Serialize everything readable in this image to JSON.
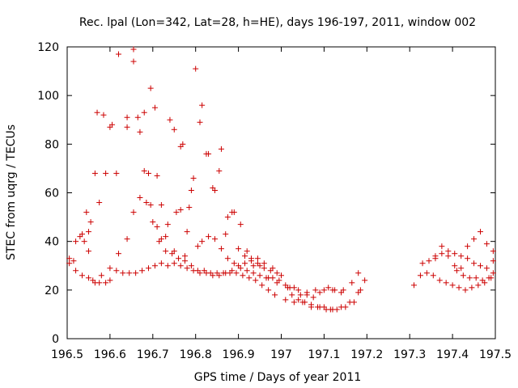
{
  "chart_data": {
    "type": "scatter",
    "title": "Rec. lpal (Lon=342, Lat=28, h=HE), days 196-197, 2011, window 002",
    "xlabel": "GPS time / Days of year 2011",
    "ylabel": "STEC from uqrg / TECUs",
    "xlim": [
      196.5,
      197.5
    ],
    "ylim": [
      0,
      120
    ],
    "xticks": [
      196.5,
      196.6,
      196.7,
      196.8,
      196.9,
      197,
      197.1,
      197.2,
      197.3,
      197.4,
      197.5
    ],
    "xtick_labels": [
      "196.5",
      "196.6",
      "196.7",
      "196.8",
      "196.9",
      "197",
      "197.1",
      "197.2",
      "197.3",
      "197.4",
      "197.5"
    ],
    "yticks": [
      0,
      20,
      40,
      60,
      80,
      100,
      120
    ],
    "ytick_labels": [
      "0",
      "20",
      "40",
      "60",
      "80",
      "100",
      "120"
    ],
    "grid": false,
    "marker": "+",
    "color": "#cc0000",
    "series": [
      {
        "x": [
          196.505,
          196.515,
          196.53,
          196.54,
          196.55,
          196.56,
          196.575,
          196.59,
          196.6,
          196.615,
          196.63,
          196.645,
          196.66,
          196.675,
          196.69,
          196.705,
          196.72,
          196.735,
          196.75,
          196.765,
          196.78,
          196.795,
          196.81,
          196.825,
          196.84,
          196.855,
          196.87,
          196.885,
          196.9,
          196.915,
          196.93,
          196.945,
          196.96,
          196.975,
          196.99,
          197.01,
          197.025,
          197.04,
          197.055,
          197.07,
          197.085,
          197.1,
          197.115,
          197.13,
          197.15,
          197.17,
          197.185,
          197.195
        ],
        "y": [
          33,
          32,
          42,
          40,
          36,
          24,
          23,
          23,
          24,
          28,
          27,
          27,
          27,
          28,
          29,
          30,
          31,
          30,
          31,
          30,
          29,
          28,
          27,
          27,
          26,
          26,
          27,
          28,
          30,
          31,
          32,
          31,
          29,
          28,
          27,
          22,
          18,
          16,
          15,
          14,
          13,
          13,
          12,
          12,
          13,
          15,
          20,
          24
        ]
      },
      {
        "x": [
          196.505,
          196.52,
          196.535,
          196.55,
          196.565,
          196.58,
          196.6,
          196.62,
          196.64,
          196.655,
          196.67,
          196.685,
          196.7,
          196.715,
          196.73,
          196.745,
          196.76,
          196.775,
          196.79,
          196.805,
          196.82,
          196.835,
          196.85,
          196.865,
          196.88,
          196.895,
          196.91,
          196.925,
          196.94,
          196.955,
          196.97,
          196.985,
          197.01,
          197.03,
          197.05,
          197.07,
          197.09,
          197.105,
          197.12,
          197.14,
          197.16,
          197.18
        ],
        "y": [
          31,
          28,
          26,
          25,
          23,
          26,
          29,
          35,
          41,
          52,
          58,
          56,
          48,
          40,
          36,
          35,
          33,
          32,
          30,
          28,
          28,
          27,
          27,
          27,
          27,
          27,
          26,
          25,
          24,
          22,
          20,
          18,
          16,
          15,
          15,
          13,
          13,
          12,
          12,
          13,
          15,
          19
        ]
      },
      {
        "x": [
          196.52,
          196.535,
          196.545,
          196.555,
          196.565,
          196.575,
          196.59,
          196.605,
          196.62,
          196.64,
          196.655,
          196.67,
          196.69,
          196.705,
          196.72,
          196.74,
          196.755,
          196.77,
          196.785,
          196.8,
          196.815,
          196.83,
          196.845,
          196.86,
          196.875,
          196.89,
          196.905,
          196.92,
          196.935,
          196.95,
          196.965,
          196.98,
          196.995,
          197.015,
          197.03,
          197.045,
          197.06,
          197.075,
          197.09,
          197.11,
          197.125,
          197.145,
          197.165,
          197.18
        ],
        "y": [
          40,
          43,
          52,
          48,
          68,
          56,
          68,
          88,
          117,
          87,
          114,
          85,
          68,
          95,
          55,
          90,
          52,
          80,
          54,
          111,
          96,
          76,
          61,
          78,
          50,
          52,
          47,
          36,
          30,
          30,
          25,
          25,
          24,
          21,
          21,
          18,
          18,
          17,
          19,
          21,
          20,
          20,
          23,
          27
        ]
      },
      {
        "x": [
          196.55,
          196.57,
          196.585,
          196.6,
          196.615,
          196.64,
          196.655,
          196.665,
          196.68,
          196.695,
          196.71,
          196.73,
          196.75,
          196.765,
          196.78,
          196.795,
          196.81,
          196.825,
          196.84,
          196.855,
          196.87,
          196.885,
          196.9,
          196.915,
          196.93,
          196.945,
          196.96,
          196.98,
          197.0,
          197.02,
          197.04,
          197.06,
          197.08,
          197.1,
          197.12,
          197.14
        ],
        "y": [
          44,
          93,
          92,
          87,
          68,
          91,
          119,
          91,
          93,
          103,
          67,
          42,
          86,
          79,
          44,
          66,
          89,
          76,
          62,
          69,
          43,
          52,
          37,
          34,
          33,
          33,
          31,
          29,
          26,
          21,
          20,
          19,
          20,
          20,
          20,
          19
        ]
      },
      {
        "x": [
          196.68,
          196.695,
          196.71,
          196.72,
          196.735,
          196.75,
          196.765,
          196.775,
          196.79,
          196.805,
          196.815,
          196.83,
          196.845,
          196.86,
          196.875,
          196.89,
          196.905,
          196.92,
          196.935,
          196.95,
          196.97,
          196.99
        ],
        "y": [
          69,
          55,
          46,
          41,
          47,
          36,
          53,
          34,
          61,
          38,
          40,
          42,
          41,
          37,
          33,
          31,
          29,
          28,
          27,
          26,
          25,
          23
        ]
      },
      {
        "x": [
          197.31,
          197.325,
          197.34,
          197.355,
          197.37,
          197.385,
          197.4,
          197.415,
          197.43,
          197.445,
          197.46,
          197.475,
          197.49
        ],
        "y": [
          22,
          26,
          27,
          26,
          24,
          23,
          22,
          21,
          20,
          21,
          22,
          23,
          25
        ]
      },
      {
        "x": [
          197.33,
          197.345,
          197.36,
          197.375,
          197.39,
          197.405,
          197.42,
          197.435,
          197.45,
          197.465,
          197.48,
          197.495
        ],
        "y": [
          31,
          32,
          34,
          35,
          36,
          35,
          34,
          33,
          31,
          30,
          29,
          27
        ]
      },
      {
        "x": [
          197.36,
          197.375,
          197.39,
          197.405,
          197.42,
          197.435,
          197.45,
          197.465,
          197.48,
          197.495
        ],
        "y": [
          33,
          38,
          34,
          30,
          29,
          38,
          41,
          44,
          39,
          36
        ]
      },
      {
        "x": [
          197.41,
          197.425,
          197.44,
          197.455,
          197.47,
          197.485,
          197.495
        ],
        "y": [
          28,
          26,
          25,
          25,
          24,
          25,
          32
        ]
      }
    ]
  }
}
